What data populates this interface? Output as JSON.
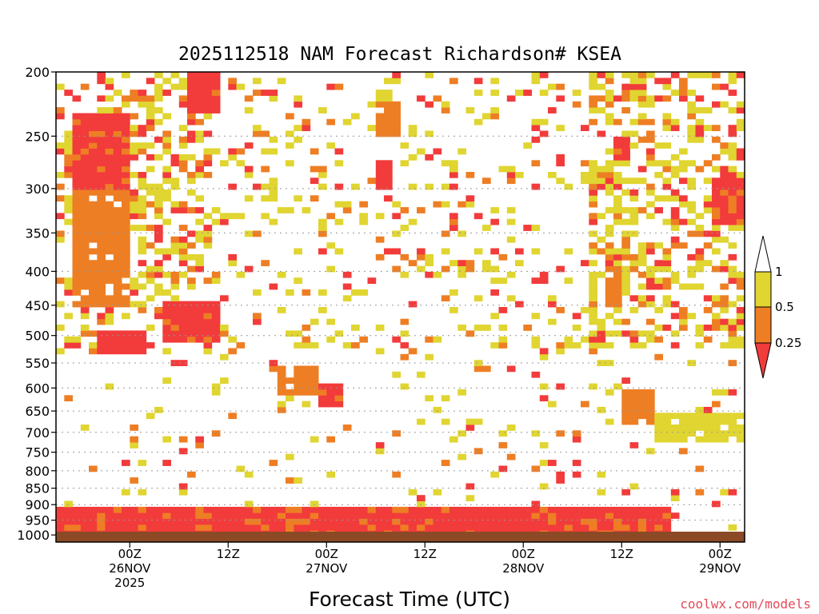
{
  "chart_data": {
    "type": "heatmap",
    "title": "2025112518 NAM Forecast Richardson# KSEA",
    "xlabel": "Forecast Time (UTC)",
    "ylabel": "",
    "credit": "coolwx.com/models",
    "x_range_hours": [
      -9,
      75
    ],
    "y_axis": {
      "scale": "log-pressure",
      "range_hPa": [
        1025,
        200
      ],
      "ticks": [
        200,
        250,
        300,
        350,
        400,
        450,
        500,
        550,
        600,
        650,
        700,
        750,
        800,
        850,
        900,
        950,
        1000
      ]
    },
    "x_ticks": [
      {
        "hour": 0,
        "line1": "00Z",
        "line2": "26NOV",
        "line3": "2025"
      },
      {
        "hour": 12,
        "line1": "12Z",
        "line2": "",
        "line3": ""
      },
      {
        "hour": 24,
        "line1": "00Z",
        "line2": "27NOV",
        "line3": ""
      },
      {
        "hour": 36,
        "line1": "12Z",
        "line2": "",
        "line3": ""
      },
      {
        "hour": 48,
        "line1": "00Z",
        "line2": "28NOV",
        "line3": ""
      },
      {
        "hour": 60,
        "line1": "12Z",
        "line2": "",
        "line3": ""
      },
      {
        "hour": 72,
        "line1": "00Z",
        "line2": "29NOV",
        "line3": ""
      }
    ],
    "legend": {
      "placement": "right",
      "bins": [
        {
          "label": "0.25",
          "range": "< 0.25",
          "color": "#f23b3b"
        },
        {
          "label": "0.5",
          "range": "0.25 - 0.5",
          "color": "#ee7e24"
        },
        {
          "label": "1",
          "range": "0.5 - 1",
          "color": "#e0d531"
        }
      ]
    },
    "colors": {
      "lt025": "#f23b3b",
      "lt05": "#ee7e24",
      "lt1": "#e0d531",
      "ground": "#8b4a25"
    },
    "regions": [
      {
        "name": "lower boundary layer (near surface)",
        "bin": "lt025",
        "h": [
          -9,
          66
        ],
        "p": [
          1000,
          900
        ]
      },
      {
        "name": "early upper-level",
        "bin": "lt025",
        "h": [
          -7,
          0
        ],
        "p": [
          330,
          230
        ]
      },
      {
        "name": "early upper-level",
        "bin": "lt05",
        "h": [
          -7,
          0
        ],
        "p": [
          450,
          300
        ]
      },
      {
        "name": "early mid-level",
        "bin": "lt025",
        "h": [
          4,
          11
        ],
        "p": [
          510,
          440
        ]
      },
      {
        "name": "early mid-level",
        "bin": "lt025",
        "h": [
          -4,
          2
        ],
        "p": [
          530,
          490
        ]
      },
      {
        "name": "upper-level",
        "bin": "lt025",
        "h": [
          7,
          11
        ],
        "p": [
          230,
          200
        ]
      },
      {
        "name": "descending shear band",
        "bin": "lt025",
        "h": [
          23,
          26
        ],
        "p": [
          640,
          590
        ]
      },
      {
        "name": "descending shear band",
        "bin": "lt05",
        "h": [
          18,
          23
        ],
        "p": [
          610,
          550
        ]
      },
      {
        "name": "mid-upper",
        "bin": "lt025",
        "h": [
          30,
          32
        ],
        "p": [
          300,
          270
        ]
      },
      {
        "name": "mid-upper",
        "bin": "lt05",
        "h": [
          30,
          33
        ],
        "p": [
          250,
          220
        ]
      },
      {
        "name": "late mid-level",
        "bin": "lt05",
        "h": [
          60,
          64
        ],
        "p": [
          680,
          600
        ]
      },
      {
        "name": "late mid-level",
        "bin": "lt05",
        "h": [
          58,
          60
        ],
        "p": [
          450,
          390
        ]
      },
      {
        "name": "late upper",
        "bin": "lt025",
        "h": [
          59,
          61
        ],
        "p": [
          270,
          250
        ]
      },
      {
        "name": "late right edge",
        "bin": "lt025",
        "h": [
          71,
          75
        ],
        "p": [
          340,
          290
        ]
      },
      {
        "name": "late low-mid",
        "bin": "lt1",
        "h": [
          64,
          75
        ],
        "p": [
          720,
          660
        ]
      }
    ]
  }
}
